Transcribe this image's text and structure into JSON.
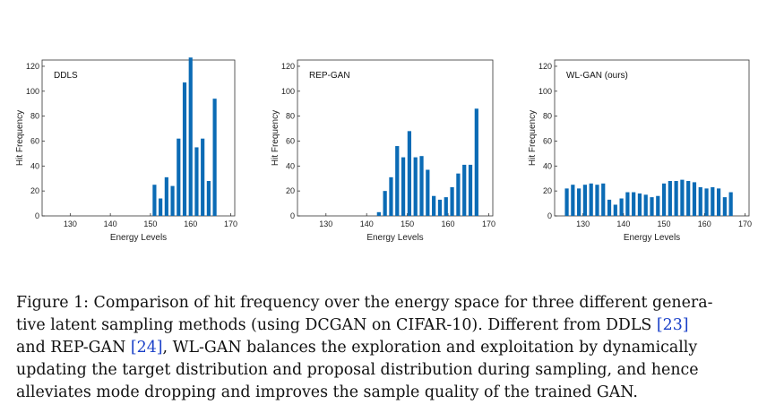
{
  "chart_data": [
    {
      "type": "bar",
      "panel_label": "DDLS",
      "xlabel": "Energy Levels",
      "ylabel": "Hit Frequency",
      "xlim": [
        123,
        171
      ],
      "ylim": [
        0,
        125
      ],
      "xticks": [
        130,
        140,
        150,
        160,
        170
      ],
      "yticks": [
        0,
        20,
        40,
        60,
        80,
        100,
        120
      ],
      "grid": false,
      "x": [
        151,
        152.5,
        154,
        155.5,
        157,
        158.5,
        160,
        161.5,
        163,
        164.5,
        166
      ],
      "values": [
        25,
        14,
        31,
        24,
        62,
        107,
        127,
        55,
        62,
        28,
        94
      ]
    },
    {
      "type": "bar",
      "panel_label": "REP-GAN",
      "xlabel": "Energy Levels",
      "ylabel": "Hit Frequency",
      "xlim": [
        123,
        171
      ],
      "ylim": [
        0,
        125
      ],
      "xticks": [
        130,
        140,
        150,
        160,
        170
      ],
      "yticks": [
        0,
        20,
        40,
        60,
        80,
        100,
        120
      ],
      "grid": false,
      "x": [
        143,
        144.5,
        146,
        147.5,
        149,
        150.5,
        152,
        153.5,
        155,
        156.5,
        158,
        159.5,
        161,
        162.5,
        164,
        165.5,
        167
      ],
      "values": [
        3,
        20,
        31,
        56,
        47,
        68,
        47,
        48,
        37,
        16,
        13,
        15,
        23,
        34,
        41,
        41,
        86
      ]
    },
    {
      "type": "bar",
      "panel_label": "WL-GAN (ours)",
      "xlabel": "Energy Levels",
      "ylabel": "Hit Frequency",
      "xlim": [
        123,
        171
      ],
      "ylim": [
        0,
        125
      ],
      "xticks": [
        130,
        140,
        150,
        160,
        170
      ],
      "yticks": [
        0,
        20,
        40,
        60,
        80,
        100,
        120
      ],
      "grid": false,
      "x": [
        126,
        127.5,
        129,
        130.5,
        132,
        133.5,
        135,
        136.5,
        138,
        139.5,
        141,
        142.5,
        144,
        145.5,
        147,
        148.5,
        150,
        151.5,
        153,
        154.5,
        156,
        157.5,
        159,
        160.5,
        162,
        163.5,
        165,
        166.5
      ],
      "values": [
        22,
        25,
        22,
        25,
        26,
        25,
        26,
        13,
        9,
        14,
        19,
        19,
        18,
        17,
        15,
        16,
        26,
        28,
        28,
        29,
        28,
        27,
        23,
        22,
        23,
        22,
        15,
        19
      ]
    }
  ],
  "caption": {
    "lines": [
      "Figure 1: Comparison of hit frequency over the energy space for three different genera-",
      "tive latent sampling methods (using DCGAN on CIFAR-10). Different from DDLS ",
      "and REP-GAN ",
      ", WL-GAN balances the exploration and exploitation by dynamically",
      "updating the target distribution and proposal distribution during sampling, and hence",
      "alleviates mode dropping and improves the sample quality of the trained GAN."
    ],
    "ref_ddls": "[23]",
    "ref_repgan": "[24]"
  },
  "colors": {
    "bar": "#0b6bb5",
    "axis": "#333333",
    "text": "#111111",
    "ref": "#1a40c8"
  }
}
